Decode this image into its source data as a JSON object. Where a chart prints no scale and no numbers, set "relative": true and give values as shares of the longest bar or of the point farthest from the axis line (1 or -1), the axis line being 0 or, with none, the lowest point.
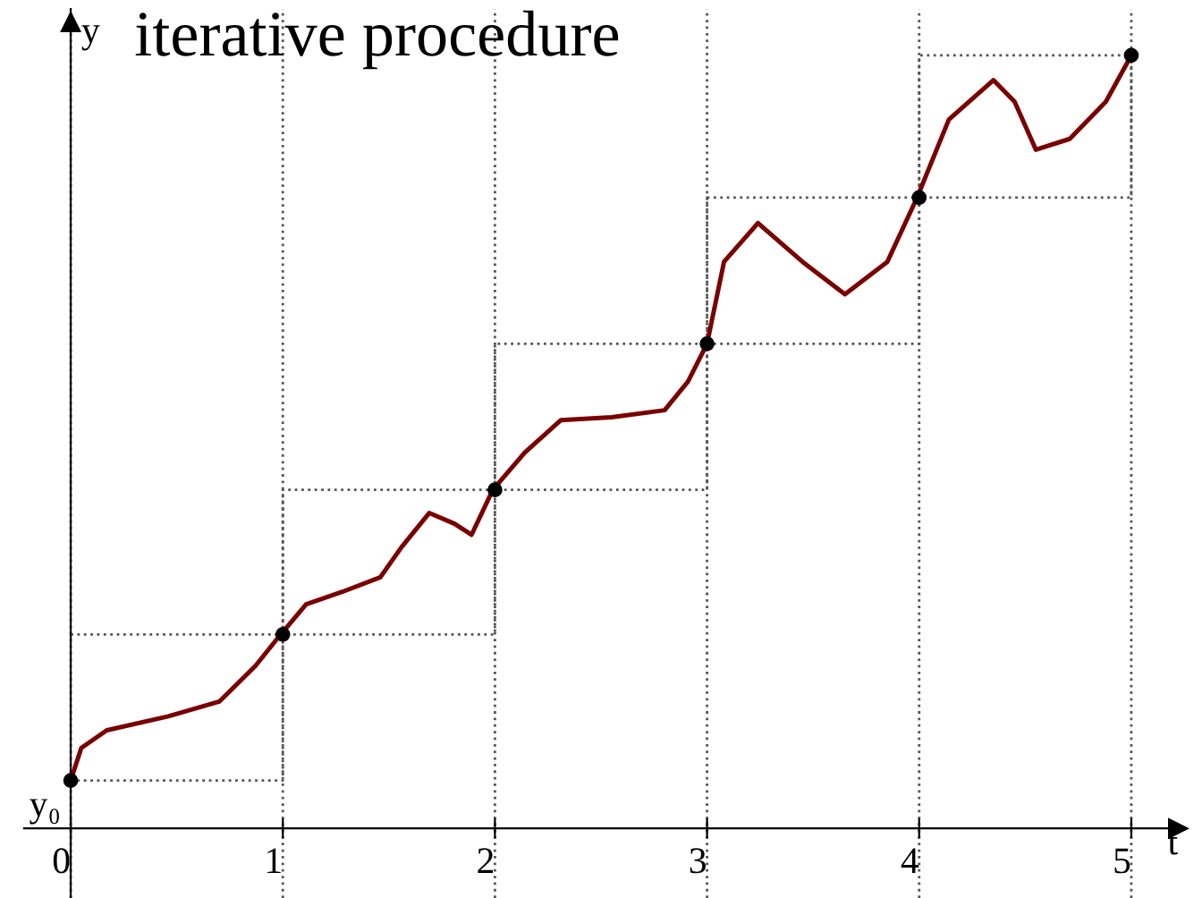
{
  "chart_data": {
    "type": "line",
    "title": "iterative procedure",
    "xlabel": "t",
    "ylabel": "y",
    "relative": true,
    "xlim": [
      -0.22,
      5.22
    ],
    "xticks": [
      0,
      1,
      2,
      3,
      4,
      5
    ],
    "grid": "x",
    "legend": false,
    "annotations": [
      {
        "text": "y₀",
        "x": 0,
        "y": 0.062
      }
    ],
    "series": [
      {
        "color": "#7a0000",
        "marker": "none",
        "line_style": "solid",
        "x": [
          0,
          0.05,
          0.17,
          0.46,
          0.7,
          0.87,
          0.99,
          1.11,
          1.28,
          1.46,
          1.56,
          1.69,
          1.81,
          1.89,
          1.99,
          2.14,
          2.31,
          2.55,
          2.8,
          2.91,
          3.0,
          3.08,
          3.24,
          3.45,
          3.65,
          3.85,
          3.99,
          4.14,
          4.35,
          4.45,
          4.55,
          4.71,
          4.88,
          5.0
        ],
        "values": [
          0.062,
          0.104,
          0.127,
          0.145,
          0.164,
          0.21,
          0.251,
          0.29,
          0.306,
          0.325,
          0.364,
          0.408,
          0.394,
          0.38,
          0.438,
          0.486,
          0.528,
          0.532,
          0.541,
          0.578,
          0.627,
          0.733,
          0.783,
          0.733,
          0.691,
          0.733,
          0.816,
          0.917,
          0.968,
          0.94,
          0.878,
          0.892,
          0.94,
          1.0
        ]
      },
      {
        "type": "scatter",
        "color": "#000000",
        "marker": "circle",
        "x": [
          0,
          1,
          2,
          3,
          4,
          5
        ],
        "values": [
          0.062,
          0.251,
          0.438,
          0.627,
          0.816,
          1.0
        ]
      },
      {
        "type": "step",
        "color": "#555555",
        "marker": "none",
        "line_style": "dotted",
        "x": [
          0,
          1,
          2,
          3,
          4,
          5
        ],
        "values": [
          0.062,
          0.251,
          0.438,
          0.627,
          0.816,
          1.0
        ]
      },
      {
        "type": "step",
        "color": "#555555",
        "marker": "none",
        "line_style": "dotted",
        "x": [
          0,
          1,
          2,
          3,
          4,
          5
        ],
        "values": [
          0.251,
          0.438,
          0.627,
          0.816,
          1.0,
          1.0
        ]
      }
    ]
  }
}
